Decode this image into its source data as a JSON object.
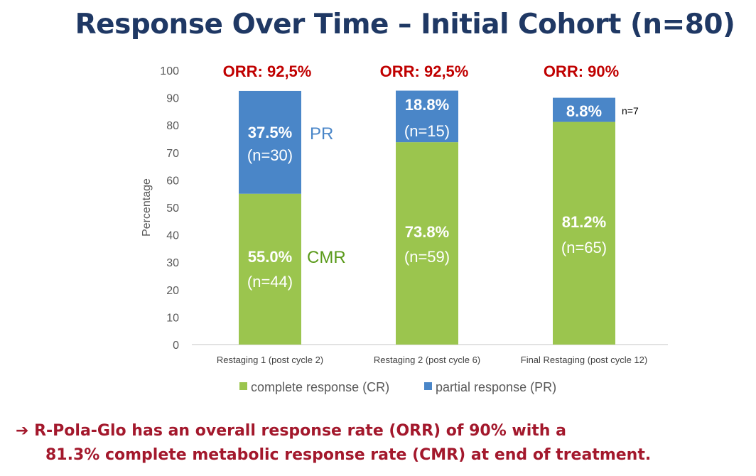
{
  "title": "Response Over Time – Initial Cohort (n=80)",
  "chart_data": {
    "type": "bar",
    "stacked": true,
    "categories": [
      "Restaging 1 (post cycle 2)",
      "Restaging 2 (post cycle 6)",
      "Final Restaging (post cycle 12)"
    ],
    "series": [
      {
        "name": "complete response (CR)",
        "color": "#9bc54e",
        "values": [
          55.0,
          73.8,
          81.2
        ],
        "labels": [
          "55.0%",
          "73.8%",
          "81.2%"
        ],
        "n_labels": [
          "(n=44)",
          "(n=59)",
          "(n=65)"
        ]
      },
      {
        "name": "partial response (PR)",
        "color": "#4a86c8",
        "values": [
          37.5,
          18.8,
          8.8
        ],
        "labels": [
          "37.5%",
          "18.8%",
          "8.8%"
        ],
        "n_labels": [
          "(n=30)",
          "(n=15)",
          "n=7"
        ]
      }
    ],
    "totals_labels": [
      "ORR: 92,5%",
      "ORR: 92,5%",
      "ORR: 90%"
    ],
    "annotations": {
      "pr": "PR",
      "cmr": "CMR"
    },
    "ylabel": "Percentage",
    "xlabel": "",
    "ylim": [
      0,
      100
    ],
    "yticks": [
      0,
      10,
      20,
      30,
      40,
      50,
      60,
      70,
      80,
      90,
      100
    ],
    "legend": "bottom",
    "grid": false
  },
  "footer": {
    "arrow": "➔",
    "line1": "R-Pola-Glo has an overall response rate (ORR) of 90% with a",
    "line2": "81.3% complete metabolic response rate (CMR) at end of treatment."
  }
}
